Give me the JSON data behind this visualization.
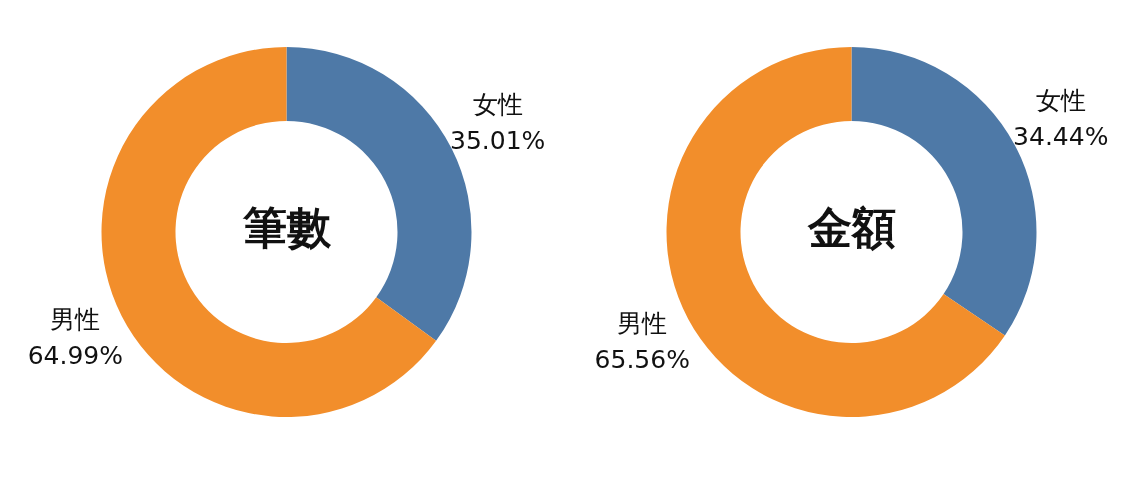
{
  "chart_data": [
    {
      "type": "donut",
      "title": "筆數",
      "categories": [
        "女性",
        "男性"
      ],
      "values": [
        35.01,
        64.99
      ],
      "colors": [
        "#4e79a7",
        "#f28e2b"
      ],
      "value_labels": [
        "35.01%",
        "64.99%"
      ]
    },
    {
      "type": "donut",
      "title": "金額",
      "categories": [
        "女性",
        "男性"
      ],
      "values": [
        34.44,
        65.56
      ],
      "colors": [
        "#4e79a7",
        "#f28e2b"
      ],
      "value_labels": [
        "34.44%",
        "65.56%"
      ]
    }
  ]
}
